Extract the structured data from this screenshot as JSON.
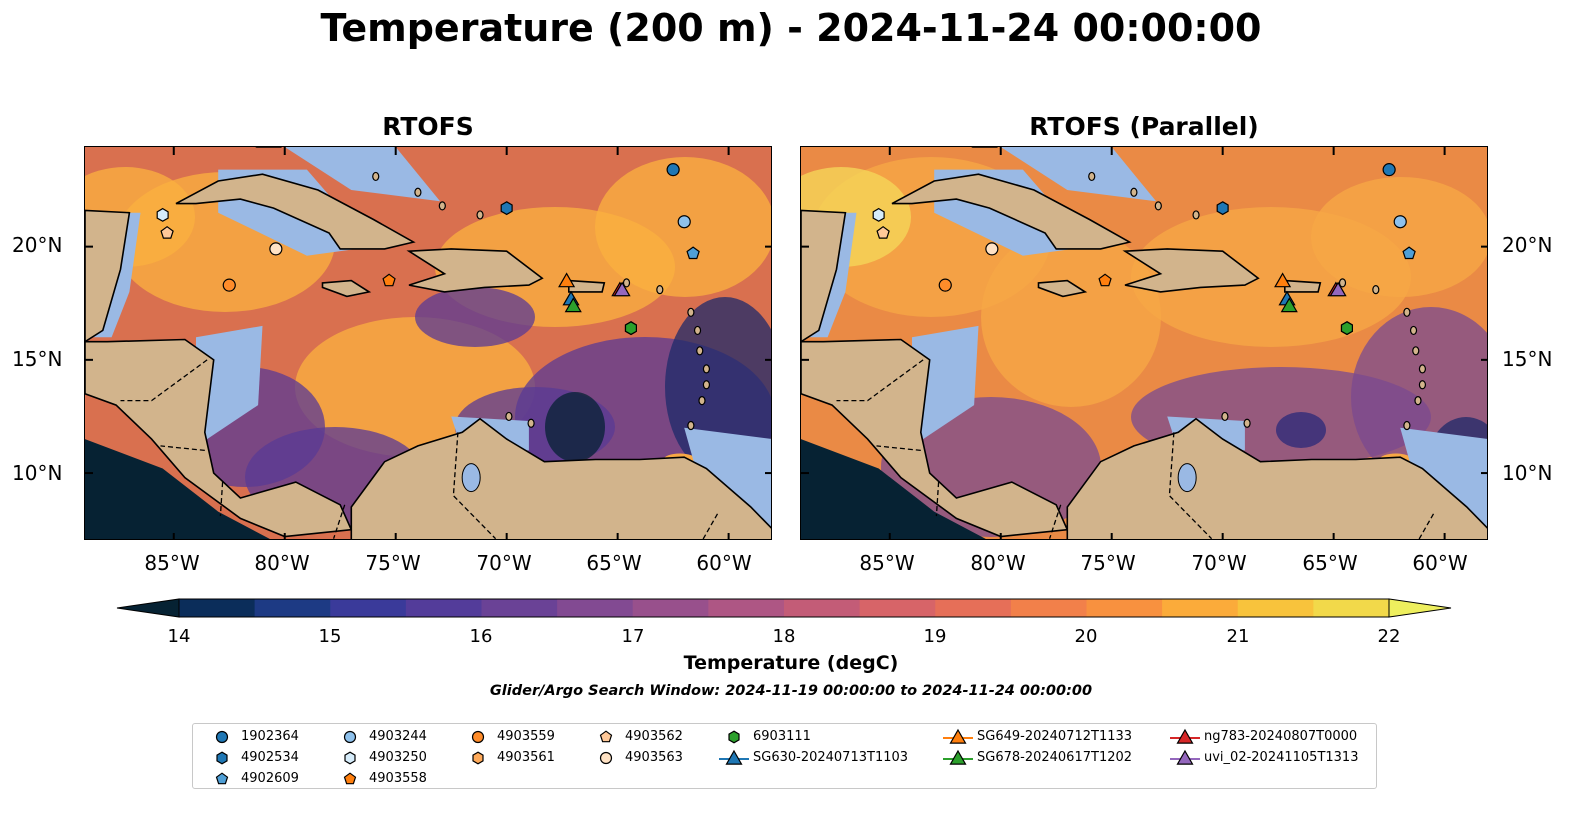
{
  "figure": {
    "title": "Temperature (200 m) - 2024-11-24 00:00:00",
    "window_text": "Glider/Argo Search Window: 2024-11-19 00:00:00 to 2024-11-24 00:00:00"
  },
  "panels": [
    {
      "title": "RTOFS",
      "colors": {
        "sea": "#d9704f",
        "cool": "#5a3a94",
        "warm": "#fbb13f",
        "deep": "#062233"
      }
    },
    {
      "title": "RTOFS (Parallel)",
      "colors": {
        "sea": "#ea8a45",
        "cool": "#7a4a90",
        "warm": "#f7a845",
        "deep": "#062233"
      }
    }
  ],
  "axes": {
    "x_ticks": [
      "85°W",
      "80°W",
      "75°W",
      "70°W",
      "65°W",
      "60°W"
    ],
    "y_ticks": [
      "20°N",
      "15°N",
      "10°N"
    ]
  },
  "colorbar": {
    "label": "Temperature (degC)",
    "ticks": [
      "14",
      "15",
      "16",
      "17",
      "18",
      "19",
      "20",
      "21",
      "22"
    ],
    "vmin": 14,
    "vmax": 22,
    "colors": [
      "#062233",
      "#0b2d5a",
      "#1d3a84",
      "#3a3a9a",
      "#533c9a",
      "#6a4296",
      "#824a92",
      "#98508c",
      "#ae5684",
      "#c35c77",
      "#d76468",
      "#e66f58",
      "#f2804a",
      "#f8913f",
      "#fbab3a",
      "#f8c33c",
      "#f2d94a",
      "#eeef5e"
    ]
  },
  "land_color": "#d2b48c",
  "shelf_color": "#9ab9e4",
  "legend": [
    {
      "label": "1902364",
      "marker": "circle",
      "color": "#1f77b4"
    },
    {
      "label": "4902534",
      "marker": "hexagon",
      "color": "#1f77b4"
    },
    {
      "label": "4902609",
      "marker": "pentagon",
      "color": "#4f9fd6"
    },
    {
      "label": "4903244",
      "marker": "circle",
      "color": "#8ec1ec"
    },
    {
      "label": "4903250",
      "marker": "hexagon",
      "color": "#d6ecfa"
    },
    {
      "label": "4903558",
      "marker": "pentagon",
      "color": "#ff7f0e"
    },
    {
      "label": "4903559",
      "marker": "circle",
      "color": "#ff8c2a"
    },
    {
      "label": "4903561",
      "marker": "hexagon",
      "color": "#ffaa5a"
    },
    {
      "label": "4903562",
      "marker": "pentagon",
      "color": "#ffc898"
    },
    {
      "label": "4903563",
      "marker": "circle",
      "color": "#ffe2c4"
    },
    {
      "label": "6903111",
      "marker": "hexagon",
      "color": "#2ca02c"
    },
    {
      "label": "SG630-20240713T1103",
      "marker": "triangle",
      "color": "#1f77b4"
    },
    {
      "label": "SG649-20240712T1133",
      "marker": "triangle",
      "color": "#ff7f0e"
    },
    {
      "label": "SG678-20240617T1202",
      "marker": "triangle",
      "color": "#2ca02c"
    },
    {
      "label": "ng783-20240807T0000",
      "marker": "triangle",
      "color": "#d62728"
    },
    {
      "label": "uvi_02-20241105T1313",
      "marker": "triangle",
      "color": "#9467bd"
    }
  ],
  "markers": [
    {
      "id": "1902364",
      "lon": -62.5,
      "lat": 23.4
    },
    {
      "id": "4902534",
      "lon": -70.0,
      "lat": 21.7
    },
    {
      "id": "4902609",
      "lon": -61.6,
      "lat": 19.7
    },
    {
      "id": "4903244",
      "lon": -62.0,
      "lat": 21.1
    },
    {
      "id": "4903250",
      "lon": -85.5,
      "lat": 21.4
    },
    {
      "id": "4903558",
      "lon": -75.3,
      "lat": 18.5
    },
    {
      "id": "4903559",
      "lon": -82.5,
      "lat": 18.3
    },
    {
      "id": "4903561",
      "lon": -64.4,
      "lat": 16.4
    },
    {
      "id": "4903562",
      "lon": -85.3,
      "lat": 20.6
    },
    {
      "id": "4903563",
      "lon": -80.4,
      "lat": 19.9
    },
    {
      "id": "6903111",
      "lon": -64.4,
      "lat": 16.4
    },
    {
      "id": "SG630-20240713T1103",
      "lon": -67.1,
      "lat": 17.7
    },
    {
      "id": "SG649-20240712T1133",
      "lon": -67.3,
      "lat": 18.5
    },
    {
      "id": "SG678-20240617T1202",
      "lon": -67.0,
      "lat": 17.4
    },
    {
      "id": "ng783-20240807T0000",
      "lon": -64.9,
      "lat": 18.1
    },
    {
      "id": "uvi_02-20241105T1313",
      "lon": -64.8,
      "lat": 18.1
    }
  ]
}
